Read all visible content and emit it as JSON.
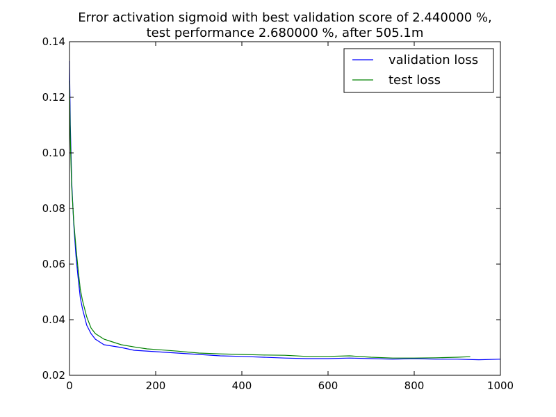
{
  "chart_data": {
    "type": "line",
    "title": [
      "Error activation sigmoid with best validation score of 2.440000 %,",
      "test performance 2.680000 %, after 505.1m"
    ],
    "xlabel": "",
    "ylabel": "",
    "xlim": [
      0,
      1000
    ],
    "ylim": [
      0.02,
      0.14
    ],
    "x_ticks": [
      0,
      200,
      400,
      600,
      800,
      1000
    ],
    "x_tick_labels": [
      "0",
      "200",
      "400",
      "600",
      "800",
      "1000"
    ],
    "y_ticks": [
      0.02,
      0.04,
      0.06,
      0.08,
      0.1,
      0.12,
      0.14
    ],
    "y_tick_labels": [
      "0.02",
      "0.04",
      "0.06",
      "0.08",
      "0.10",
      "0.12",
      "0.14"
    ],
    "grid": false,
    "legend_position": "top-right",
    "series": [
      {
        "name": "validation loss",
        "color": "#0000ff",
        "x": [
          0,
          2,
          5,
          8,
          10,
          15,
          20,
          25,
          30,
          40,
          50,
          60,
          70,
          80,
          100,
          120,
          150,
          200,
          250,
          300,
          350,
          400,
          450,
          500,
          550,
          600,
          650,
          700,
          750,
          800,
          850,
          900,
          950,
          1000
        ],
        "y": [
          0.133,
          0.11,
          0.09,
          0.08,
          0.074,
          0.063,
          0.055,
          0.048,
          0.044,
          0.038,
          0.035,
          0.033,
          0.032,
          0.031,
          0.0305,
          0.03,
          0.029,
          0.0285,
          0.028,
          0.0275,
          0.027,
          0.0268,
          0.0265,
          0.0262,
          0.026,
          0.026,
          0.0262,
          0.026,
          0.0258,
          0.026,
          0.0258,
          0.0258,
          0.0256,
          0.0258
        ]
      },
      {
        "name": "test loss",
        "color": "#008000",
        "x": [
          0,
          2,
          5,
          8,
          10,
          15,
          20,
          25,
          30,
          40,
          50,
          60,
          70,
          80,
          100,
          120,
          150,
          180,
          200,
          250,
          300,
          350,
          400,
          450,
          500,
          550,
          600,
          650,
          700,
          750,
          800,
          850,
          900,
          930
        ],
        "y": [
          0.126,
          0.105,
          0.088,
          0.08,
          0.075,
          0.066,
          0.058,
          0.051,
          0.047,
          0.041,
          0.037,
          0.035,
          0.034,
          0.033,
          0.032,
          0.031,
          0.0302,
          0.0295,
          0.0293,
          0.0287,
          0.028,
          0.0277,
          0.0275,
          0.0273,
          0.0272,
          0.0268,
          0.0268,
          0.027,
          0.0265,
          0.0262,
          0.0262,
          0.0263,
          0.0265,
          0.0267
        ]
      }
    ]
  }
}
